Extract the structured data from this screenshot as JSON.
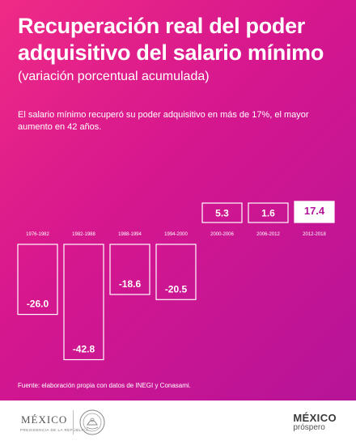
{
  "page": {
    "title": "Recuperación real del poder adquisitivo del salario mínimo",
    "subtitle": "(variación porcentual acumulada)",
    "note": "El salario mínimo recuperó su poder adquisitivo en más de 17%, el mayor aumento en 42 años.",
    "source": "Fuente: elaboración propia con datos de INEGI y Conasami."
  },
  "chart_data": {
    "type": "bar",
    "categories": [
      "1976-1982",
      "1982-1988",
      "1988-1994",
      "1994-2000",
      "2000-2006",
      "2006-2012",
      "2012-2018"
    ],
    "values": [
      -26.0,
      -42.8,
      -18.6,
      -20.5,
      5.3,
      1.6,
      17.4
    ],
    "labels": [
      "-26.0",
      "-42.8",
      "-18.6",
      "-20.5",
      "5.3",
      "1.6",
      "17.4"
    ],
    "highlight_category": "2012-2018",
    "title": "",
    "xlabel": "",
    "ylabel": ""
  },
  "footer": {
    "gov_wordmark": "MÉXICO",
    "gov_subline": "PRESIDENCIA DE LA REPÚBLICA",
    "brand_main": "MÉXICO",
    "brand_sub": "próspero"
  },
  "colors": {
    "background_start": "#ef2a86",
    "background_end": "#b3139a",
    "bar_outline": "#ffffff",
    "highlight_fill": "#ffffff",
    "highlight_text": "#b3139a",
    "footer_bg": "#ffffff"
  }
}
